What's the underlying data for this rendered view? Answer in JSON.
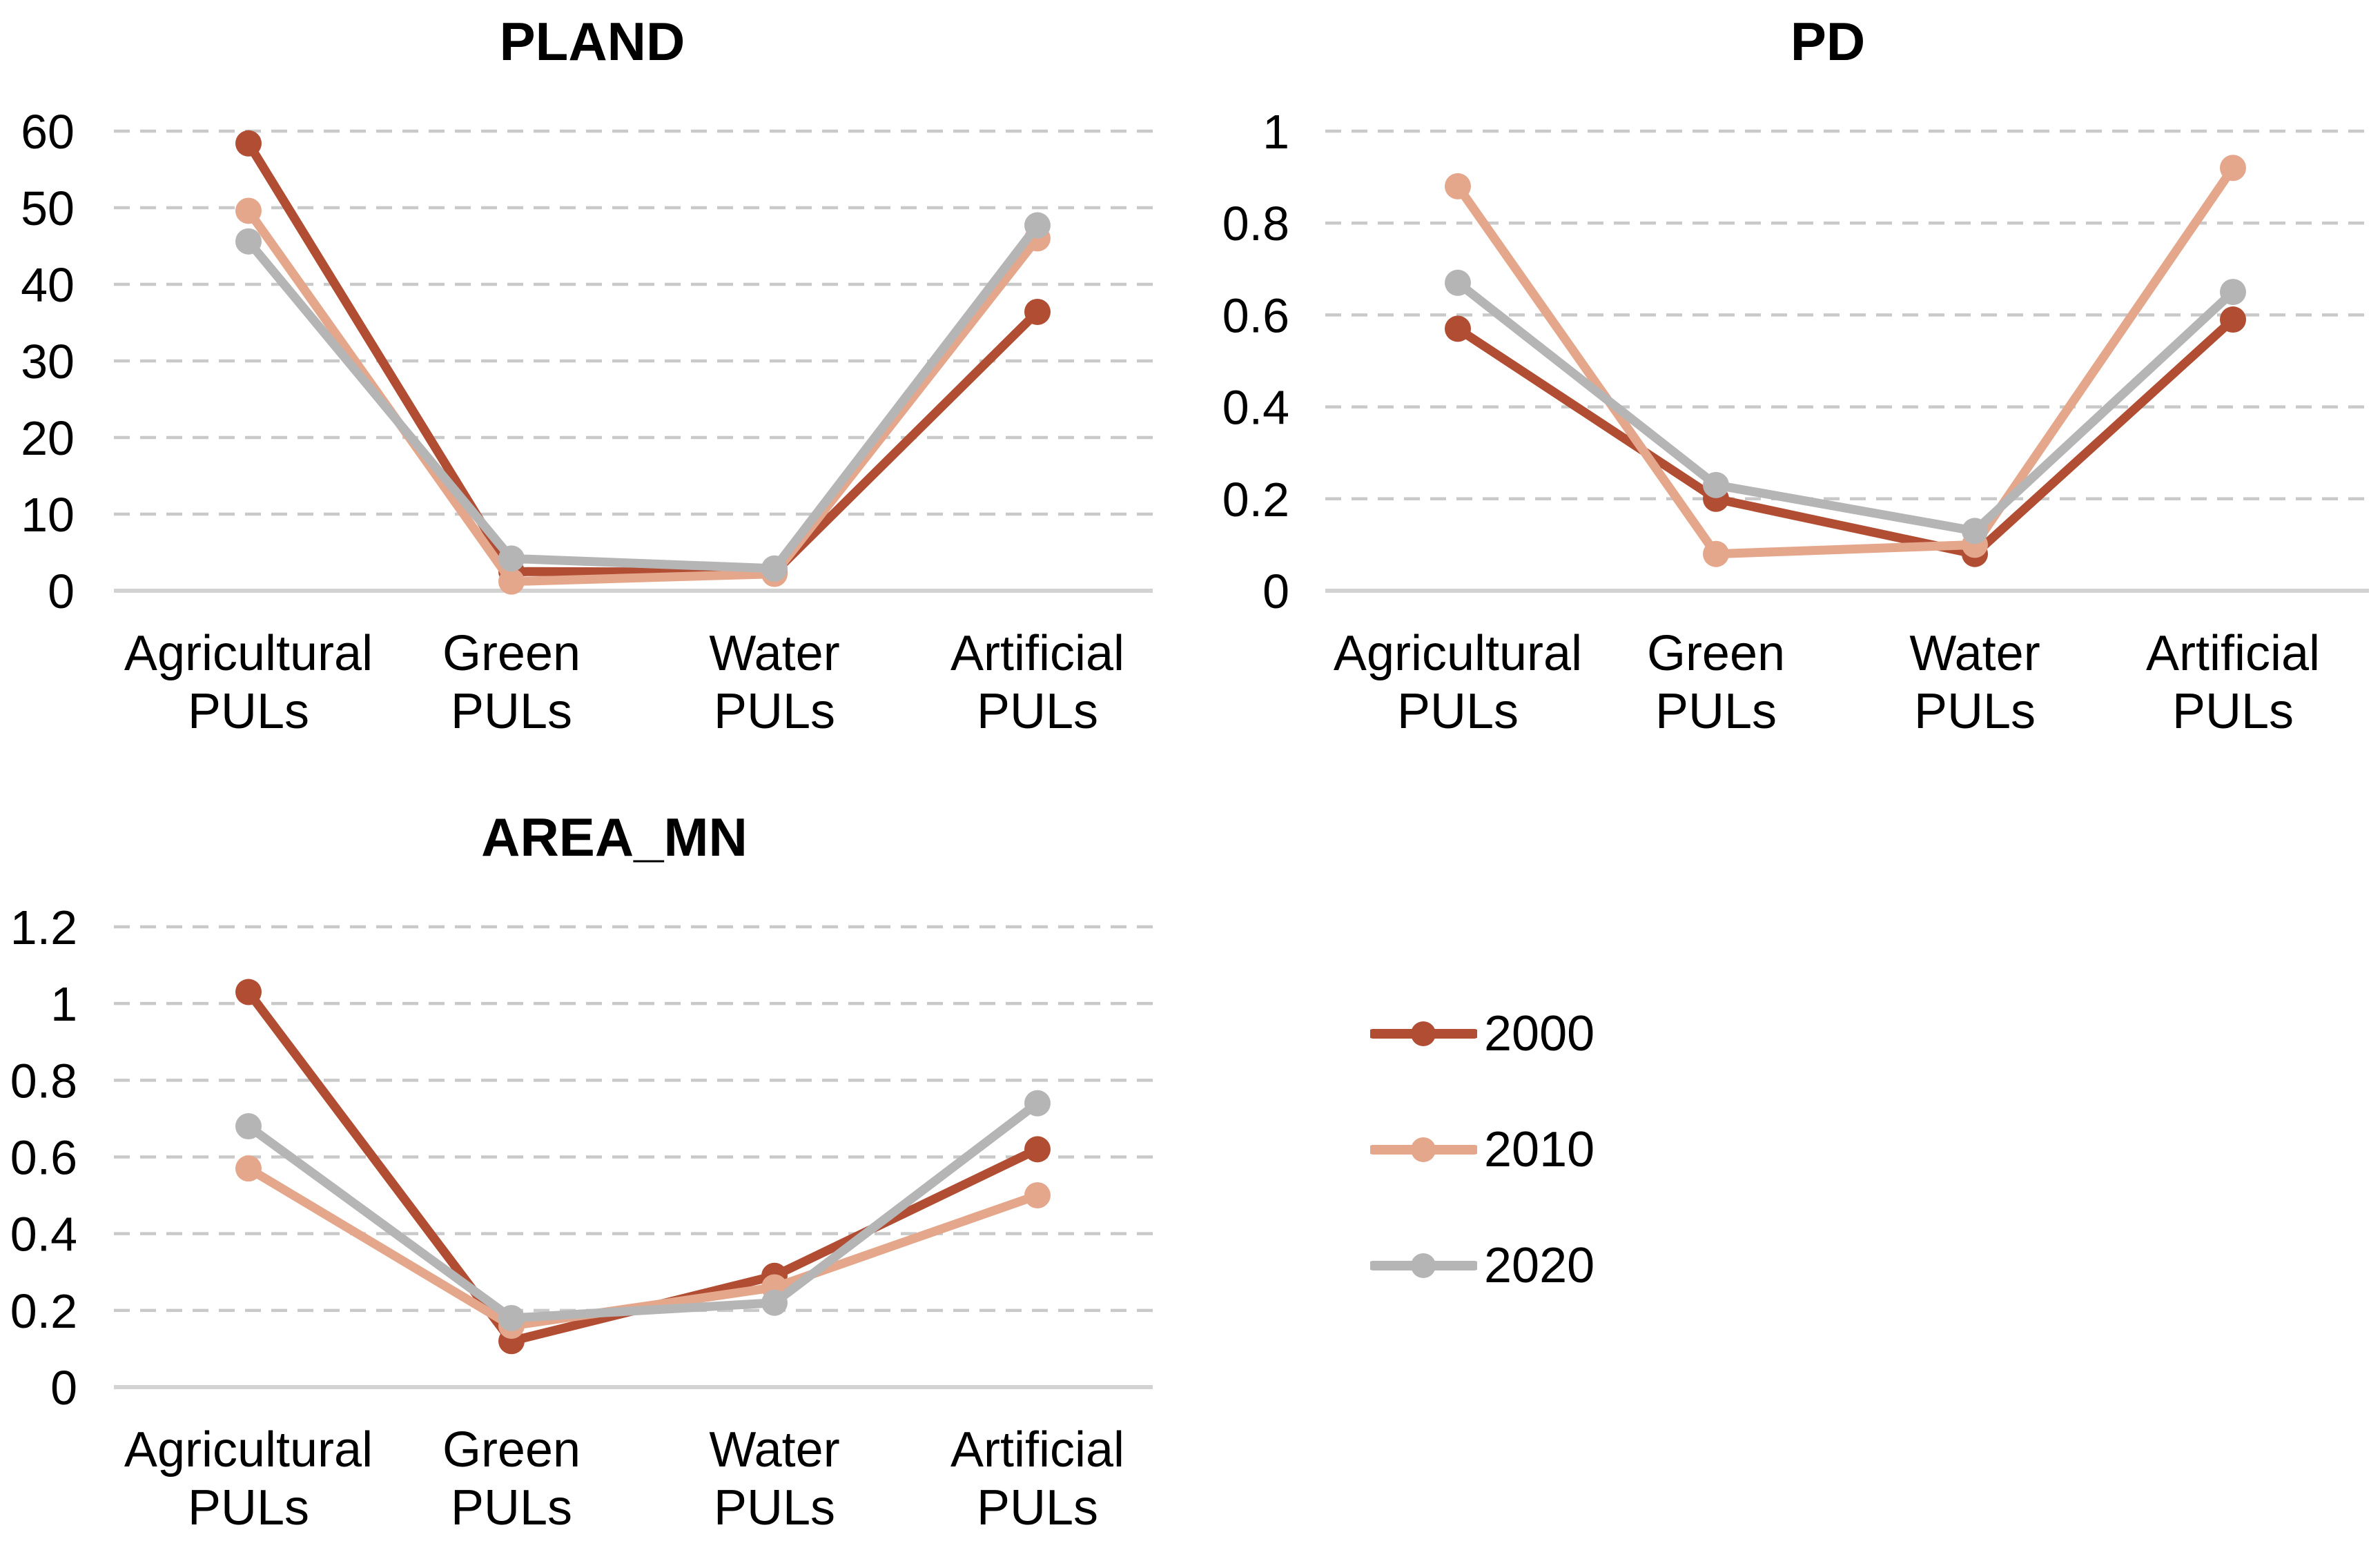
{
  "page": {
    "background": "#ffffff",
    "text_color": "#000000"
  },
  "colors": {
    "gridline": "#c9c9c9",
    "axis_line": "#d2d2d2",
    "series_2000": "#b04d33",
    "series_2010": "#e5a78c",
    "series_2020": "#b5b5b5"
  },
  "chart_data": [
    {
      "id": "PLAND",
      "type": "line",
      "title": "PLAND",
      "categories": [
        [
          "Agricultural",
          "PULs"
        ],
        [
          "Green",
          "PULs"
        ],
        [
          "Water",
          "PULs"
        ],
        [
          "Artificial",
          "PULs"
        ]
      ],
      "xlabel": "",
      "ylabel": "",
      "ylim": [
        0,
        60
      ],
      "y_step": 10,
      "grid": "horizontal-dashed",
      "legend_position": "none",
      "series": [
        {
          "name": "2000",
          "color": "#b04d33",
          "values": [
            58.4,
            2.5,
            2.4,
            36.4
          ]
        },
        {
          "name": "2010",
          "color": "#e5a78c",
          "values": [
            49.6,
            1.2,
            2.2,
            46.0
          ]
        },
        {
          "name": "2020",
          "color": "#b5b5b5",
          "values": [
            45.6,
            4.2,
            2.9,
            47.7
          ]
        }
      ]
    },
    {
      "id": "PD",
      "type": "line",
      "title": "PD",
      "categories": [
        [
          "Agricultural",
          "PULs"
        ],
        [
          "Green",
          "PULs"
        ],
        [
          "Water",
          "PULs"
        ],
        [
          "Artificial",
          "PULs"
        ]
      ],
      "xlabel": "",
      "ylabel": "",
      "ylim": [
        0,
        1
      ],
      "y_step": 0.2,
      "grid": "horizontal-dashed",
      "legend_position": "none",
      "series": [
        {
          "name": "2000",
          "color": "#b04d33",
          "values": [
            0.57,
            0.2,
            0.08,
            0.59
          ]
        },
        {
          "name": "2010",
          "color": "#e5a78c",
          "values": [
            0.88,
            0.08,
            0.1,
            0.92
          ]
        },
        {
          "name": "2020",
          "color": "#b5b5b5",
          "values": [
            0.67,
            0.23,
            0.13,
            0.65
          ]
        }
      ]
    },
    {
      "id": "AREA_MN",
      "type": "line",
      "title": "AREA_MN",
      "categories": [
        [
          "Agricultural",
          "PULs"
        ],
        [
          "Green",
          "PULs"
        ],
        [
          "Water",
          "PULs"
        ],
        [
          "Artificial",
          "PULs"
        ]
      ],
      "xlabel": "",
      "ylabel": "",
      "ylim": [
        0,
        1.2
      ],
      "y_step": 0.2,
      "grid": "horizontal-dashed",
      "legend_position": "none",
      "series": [
        {
          "name": "2000",
          "color": "#b04d33",
          "values": [
            1.03,
            0.12,
            0.29,
            0.62
          ]
        },
        {
          "name": "2010",
          "color": "#e5a78c",
          "values": [
            0.57,
            0.16,
            0.26,
            0.5
          ]
        },
        {
          "name": "2020",
          "color": "#b5b5b5",
          "values": [
            0.68,
            0.18,
            0.22,
            0.74
          ]
        }
      ]
    }
  ],
  "legend": {
    "position": "middle-right",
    "items": [
      {
        "label": "2000",
        "color": "#b04d33"
      },
      {
        "label": "2010",
        "color": "#e5a78c"
      },
      {
        "label": "2020",
        "color": "#b5b5b5"
      }
    ]
  }
}
